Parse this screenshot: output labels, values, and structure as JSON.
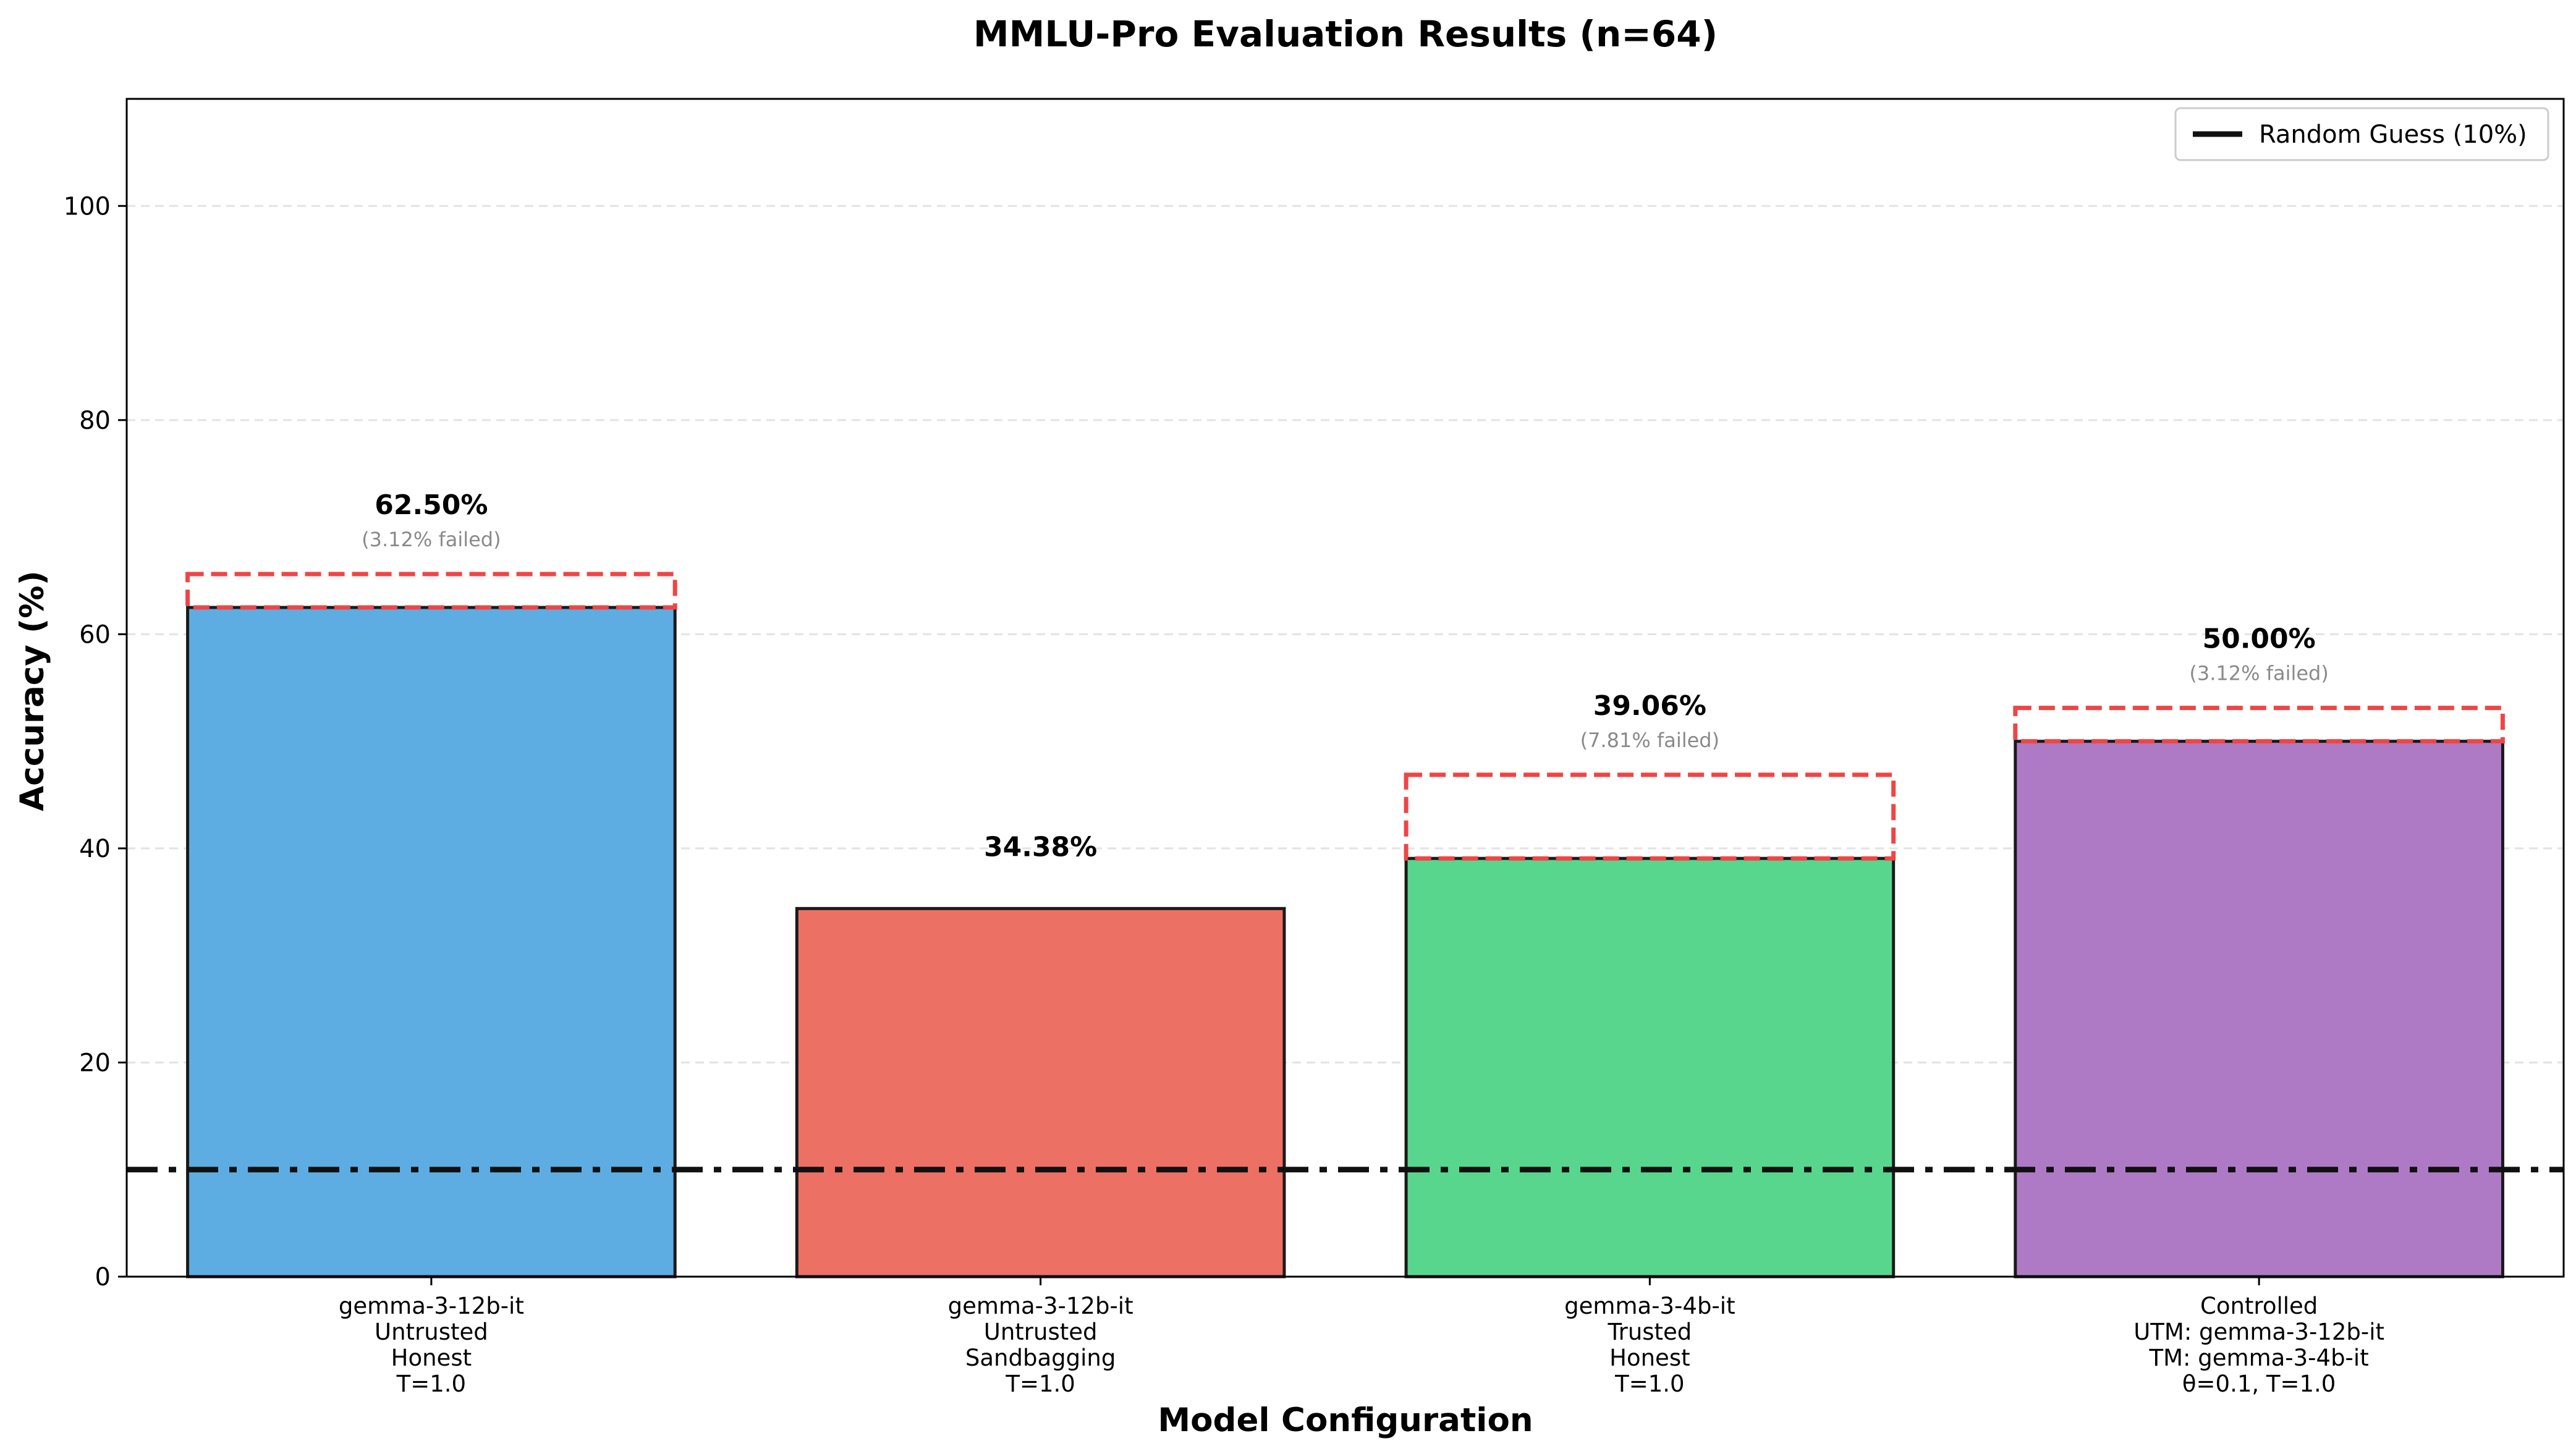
{
  "chart_data": {
    "type": "bar",
    "title": "MMLU-Pro Evaluation Results (n=64)",
    "xlabel": "Model Configuration",
    "ylabel": "Accuracy (%)",
    "ylim": [
      0,
      110
    ],
    "yticks": [
      0,
      20,
      40,
      60,
      80,
      100
    ],
    "grid": "y-dashed",
    "categories": [
      [
        "gemma-3-12b-it",
        "Untrusted",
        "Honest",
        "T=1.0"
      ],
      [
        "gemma-3-12b-it",
        "Untrusted",
        "Sandbagging",
        "T=1.0"
      ],
      [
        "gemma-3-4b-it",
        "Trusted",
        "Honest",
        "T=1.0"
      ],
      [
        "Controlled",
        "UTM: gemma-3-12b-it",
        "TM: gemma-3-4b-it",
        "θ=0.1, T=1.0"
      ]
    ],
    "values": [
      62.5,
      34.38,
      39.06,
      50.0
    ],
    "value_labels": [
      "62.50%",
      "34.38%",
      "39.06%",
      "50.00%"
    ],
    "failed_pct": [
      3.12,
      0,
      7.81,
      3.12
    ],
    "failed_labels": [
      "(3.12% failed)",
      "",
      "(7.81% failed)",
      "(3.12% failed)"
    ],
    "colors": [
      "#5dade2",
      "#ec7063",
      "#58d68d",
      "#af7ac5"
    ],
    "failed_box_color": "#f04545",
    "reference_line": {
      "value": 10,
      "label": "Random Guess (10%)",
      "style": "dash-dot",
      "color": "#111111"
    },
    "legend": {
      "position": "top-right",
      "entries": [
        "Random Guess (10%)"
      ]
    }
  }
}
